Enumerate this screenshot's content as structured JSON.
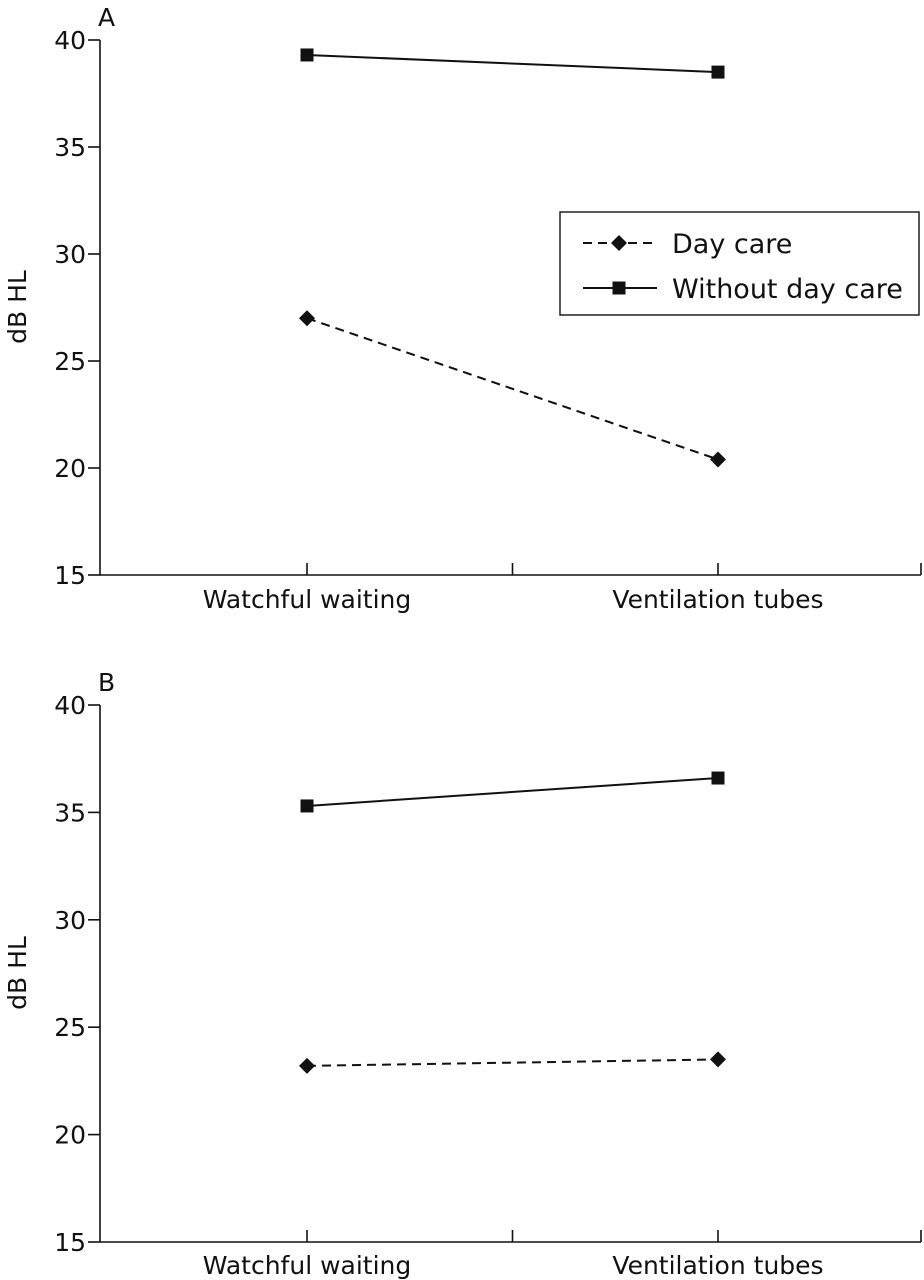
{
  "chart_data": [
    {
      "type": "line",
      "panel": "A",
      "ylabel": "dB HL",
      "ylim": [
        15,
        40
      ],
      "yticks": [
        15,
        20,
        25,
        30,
        35,
        40
      ],
      "categories": [
        "Watchful waiting",
        "Ventilation tubes"
      ],
      "legend": {
        "placement": "right",
        "entries": [
          "Day care",
          "Without day care"
        ]
      },
      "series": [
        {
          "name": "Day care",
          "style": "dashed",
          "marker": "diamond",
          "values": [
            27.0,
            20.4
          ]
        },
        {
          "name": "Without day care",
          "style": "solid",
          "marker": "square",
          "values": [
            39.3,
            38.5
          ]
        }
      ]
    },
    {
      "type": "line",
      "panel": "B",
      "ylabel": "dB HL",
      "ylim": [
        15,
        40
      ],
      "yticks": [
        15,
        20,
        25,
        30,
        35,
        40
      ],
      "categories": [
        "Watchful waiting",
        "Ventilation tubes"
      ],
      "series": [
        {
          "name": "Day care",
          "style": "dashed",
          "marker": "diamond",
          "values": [
            23.2,
            23.5
          ]
        },
        {
          "name": "Without day care",
          "style": "solid",
          "marker": "square",
          "values": [
            35.3,
            36.6
          ]
        }
      ]
    }
  ]
}
